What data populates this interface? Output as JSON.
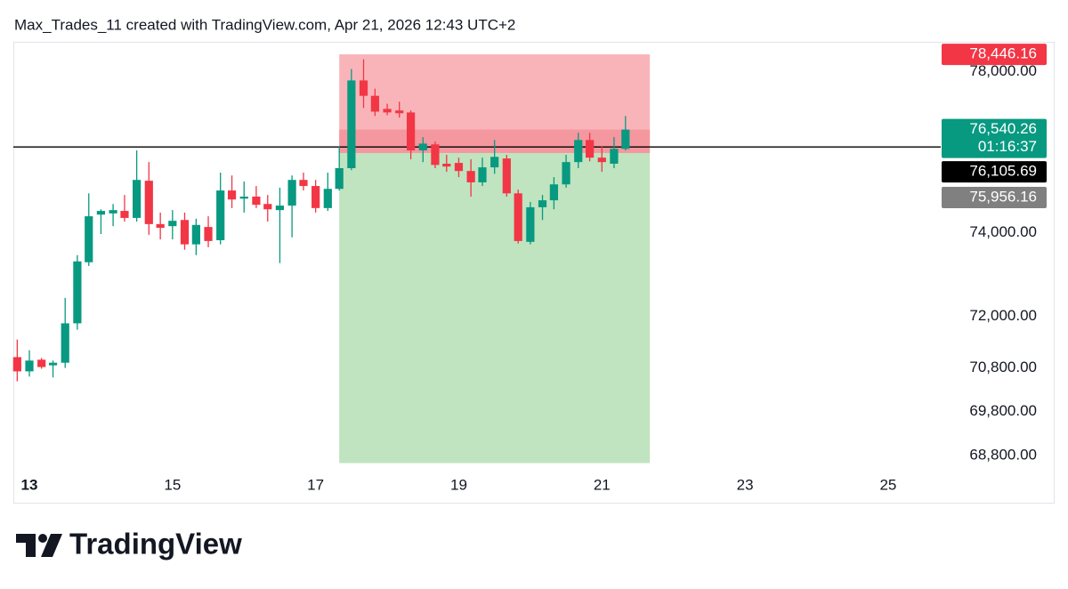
{
  "chart_data": {
    "type": "candlestick",
    "title": "Max_Trades_11 created with TradingView.com, Apr 21, 2026 12:43 UTC+2",
    "log_scale": true,
    "up_color": "#089981",
    "down_color": "#f23645",
    "x": [
      12.83,
      13,
      13.17,
      13.33,
      13.5,
      13.67,
      13.83,
      14,
      14.17,
      14.33,
      14.5,
      14.67,
      14.83,
      15,
      15.17,
      15.33,
      15.5,
      15.67,
      15.83,
      16,
      16.17,
      16.33,
      16.5,
      16.67,
      16.83,
      17,
      17.17,
      17.33,
      17.5,
      17.67,
      17.83,
      18,
      18.17,
      18.33,
      18.5,
      18.67,
      18.83,
      19,
      19.17,
      19.33,
      19.5,
      19.67,
      19.83,
      20,
      20.17,
      20.33,
      20.5,
      20.67,
      20.83,
      21,
      21.17,
      21.33
    ],
    "open": [
      71050,
      70720,
      70990,
      70860,
      70920,
      71840,
      73290,
      74440,
      74470,
      74530,
      74360,
      75270,
      74210,
      74160,
      74310,
      73720,
      74140,
      73820,
      75030,
      74830,
      74880,
      74700,
      74550,
      74660,
      75290,
      75140,
      74600,
      75070,
      75580,
      77780,
      77390,
      77060,
      77020,
      76970,
      76020,
      76170,
      75690,
      75710,
      75510,
      75230,
      75600,
      75820,
      74960,
      73780,
      74620,
      74790,
      75180,
      75730,
      76280,
      75840,
      75690,
      76060
    ],
    "high": [
      71460,
      71210,
      71030,
      70970,
      72440,
      73460,
      74960,
      74570,
      74700,
      74920,
      76020,
      75730,
      74490,
      74550,
      74490,
      74340,
      74400,
      75470,
      75400,
      75250,
      75140,
      74920,
      75100,
      75400,
      75470,
      75290,
      75470,
      76130,
      78070,
      78320,
      77570,
      77190,
      77240,
      77020,
      76350,
      76240,
      75910,
      75840,
      75800,
      75840,
      76280,
      75910,
      75050,
      74750,
      74920,
      75360,
      75910,
      76460,
      76460,
      76130,
      76350,
      76880
    ],
    "low": [
      70490,
      70600,
      70780,
      70580,
      70800,
      71690,
      73200,
      73970,
      74160,
      74270,
      74270,
      73950,
      73840,
      73840,
      73590,
      73460,
      73650,
      73720,
      74600,
      74490,
      74600,
      74270,
      73270,
      73890,
      75030,
      74490,
      74530,
      75030,
      75530,
      77080,
      76880,
      76900,
      76840,
      75800,
      75730,
      75580,
      75490,
      75360,
      74880,
      75140,
      75440,
      74880,
      73740,
      73720,
      74310,
      74570,
      75100,
      75580,
      75750,
      75490,
      75580,
      76020
    ],
    "close": [
      70720,
      70970,
      70820,
      70920,
      71840,
      73310,
      74400,
      74530,
      74550,
      74360,
      75290,
      74210,
      74120,
      74290,
      73720,
      74190,
      73800,
      75030,
      74810,
      74880,
      74680,
      74570,
      74660,
      75290,
      75140,
      74600,
      75070,
      75580,
      77780,
      77390,
      76990,
      76970,
      76950,
      76020,
      76190,
      75660,
      75620,
      75510,
      75230,
      75600,
      75860,
      74960,
      73800,
      74620,
      74790,
      75180,
      75730,
      76280,
      75840,
      75730,
      76060,
      76540.26
    ],
    "last_price_label": "76,540.26",
    "countdown": "01:16:37",
    "xlim": [
      12.776,
      25.71
    ],
    "xticks": [
      13,
      15,
      17,
      19,
      21,
      23,
      25
    ],
    "ylim": [
      68440,
      78700
    ],
    "yticks": [
      {
        "value": 78000,
        "label": "78,000.00"
      },
      {
        "value": 74000,
        "label": "74,000.00"
      },
      {
        "value": 72000,
        "label": "72,000.00"
      },
      {
        "value": 70800,
        "label": "70,800.00"
      },
      {
        "value": 69800,
        "label": "69,800.00"
      },
      {
        "value": 68800,
        "label": "68,800.00"
      }
    ],
    "price_line": {
      "value": 76105.69,
      "label": "76,105.69",
      "color": "#000000"
    },
    "position": {
      "start": 17.33,
      "end": 21.67,
      "stop": {
        "value": 78446.16,
        "label": "78,446.16",
        "color": "#f23645"
      },
      "entry": {
        "value": 75956.16,
        "label": "75,956.16",
        "color": "#808080"
      },
      "target": 68630,
      "loss_color": "#f9b4b9",
      "profit_color": "#bfe4bf",
      "open_loss_color": "#f4979e"
    }
  },
  "brand": "TradingView"
}
